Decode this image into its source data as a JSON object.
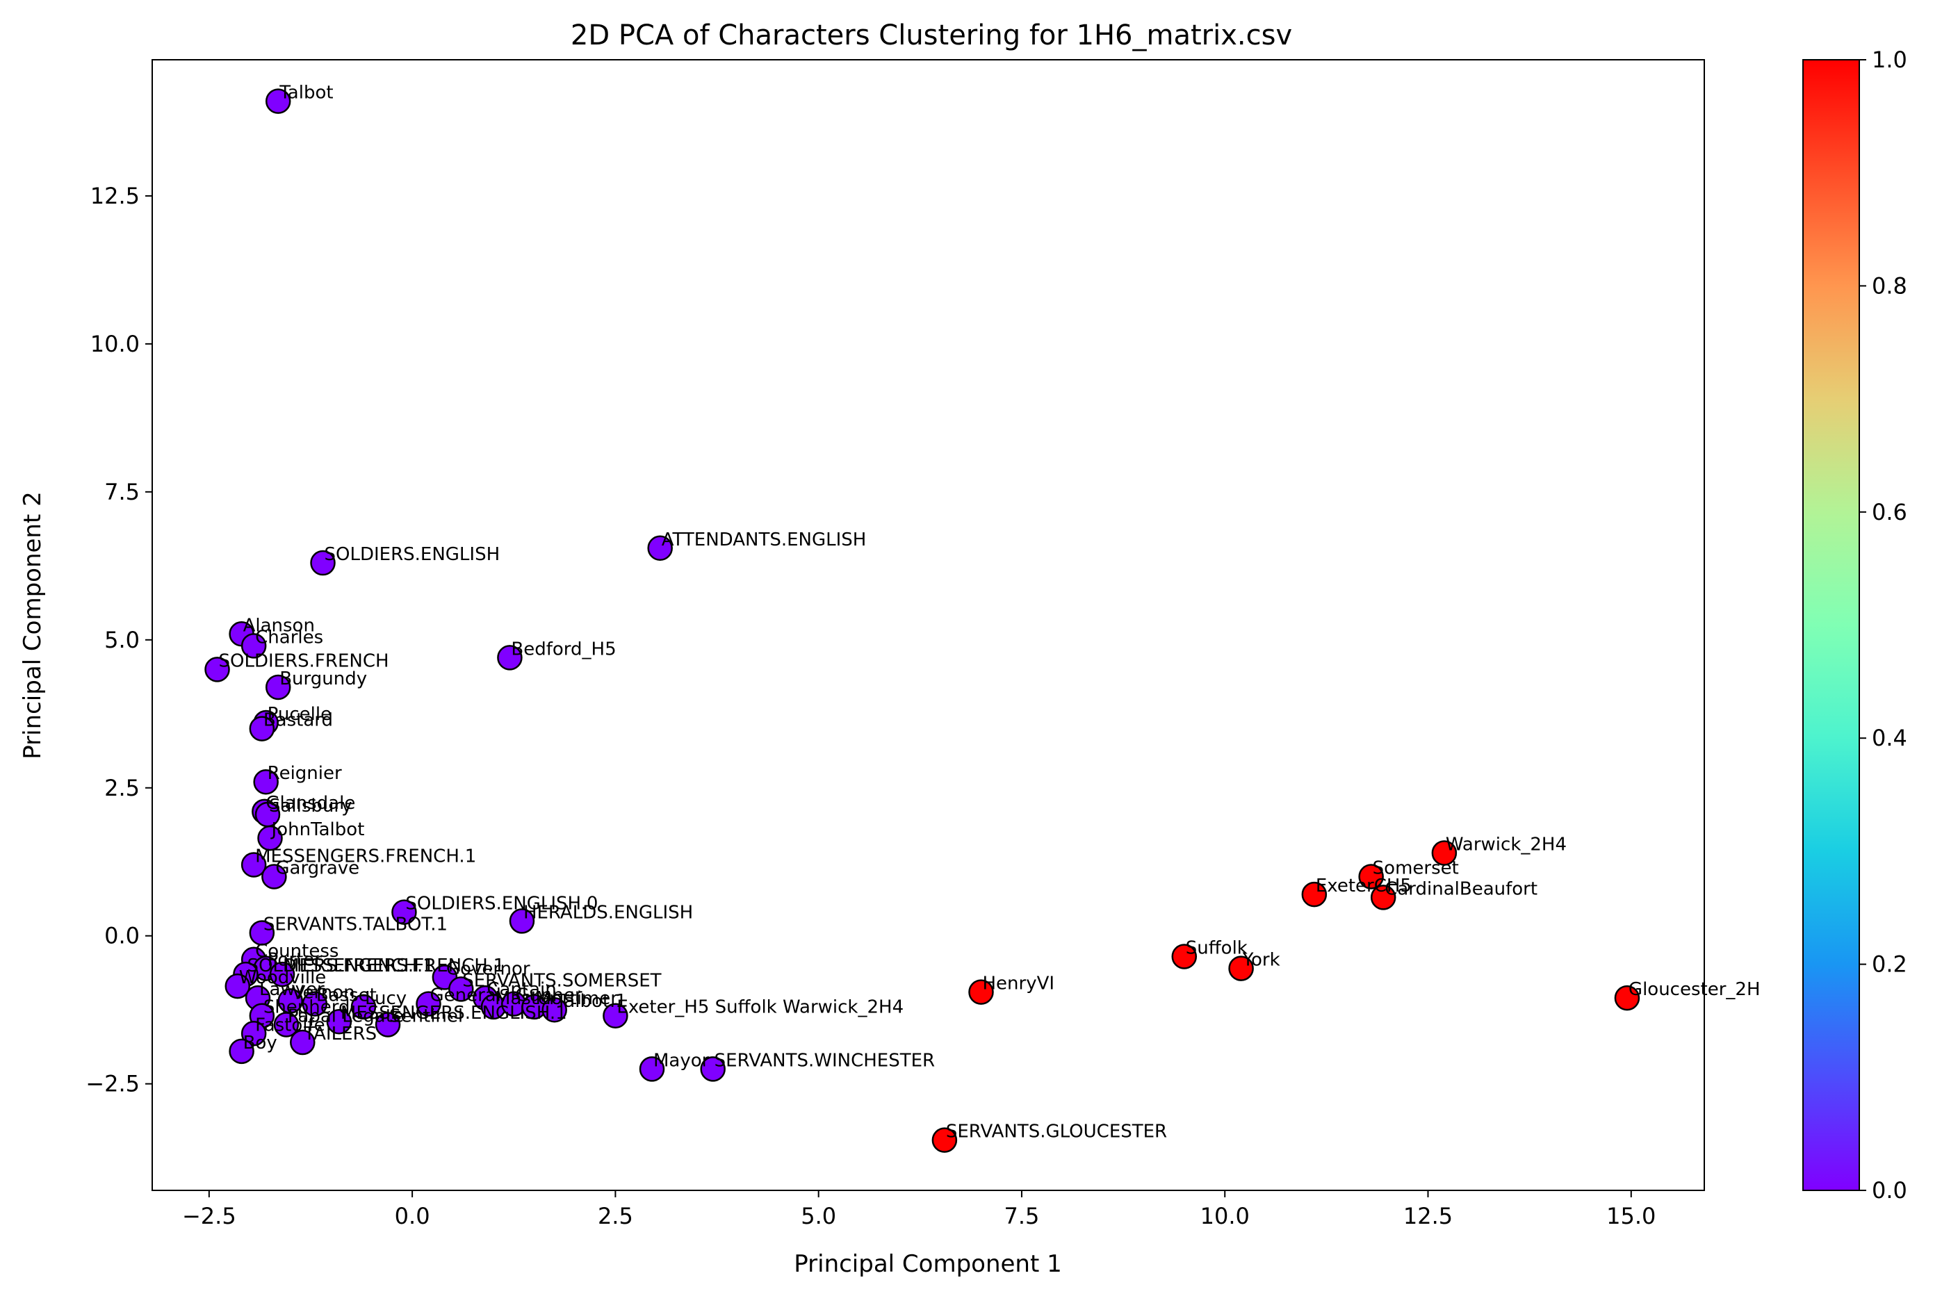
{
  "chart_data": {
    "type": "scatter",
    "title": "2D PCA of Characters Clustering for 1H6_matrix.csv",
    "xlabel": "Principal Component 1",
    "ylabel": "Principal Component 2",
    "xlim": [
      -3.2,
      15.9
    ],
    "ylim": [
      -4.3,
      14.8
    ],
    "xticks": [
      -2.5,
      0.0,
      2.5,
      5.0,
      7.5,
      10.0,
      12.5,
      15.0
    ],
    "xtick_labels": [
      "−2.5",
      "0.0",
      "2.5",
      "5.0",
      "7.5",
      "10.0",
      "12.5",
      "15.0"
    ],
    "yticks": [
      -2.5,
      0.0,
      2.5,
      5.0,
      7.5,
      10.0,
      12.5
    ],
    "ytick_labels": [
      "−2.5",
      "0.0",
      "2.5",
      "5.0",
      "7.5",
      "10.0",
      "12.5"
    ],
    "grid": false,
    "colormap": "rainbow",
    "colorbar": {
      "range": [
        0.0,
        1.0
      ],
      "ticks": [
        0.0,
        0.2,
        0.4,
        0.6,
        0.8,
        1.0
      ],
      "tick_labels": [
        "0.0",
        "0.2",
        "0.4",
        "0.6",
        "0.8",
        "1.0"
      ]
    },
    "cluster_colors": {
      "0": "#8000ff",
      "1": "#ff0000"
    },
    "points": [
      {
        "label": "Talbot",
        "x": -1.65,
        "y": 14.1,
        "c": 0
      },
      {
        "label": "SOLDIERS.ENGLISH",
        "x": -1.1,
        "y": 6.3,
        "c": 0
      },
      {
        "label": "ATTENDANTS.ENGLISH",
        "x": 3.05,
        "y": 6.55,
        "c": 0
      },
      {
        "label": "Alanson",
        "x": -2.1,
        "y": 5.1,
        "c": 0
      },
      {
        "label": "Charles",
        "x": -1.95,
        "y": 4.9,
        "c": 0
      },
      {
        "label": "SOLDIERS.FRENCH",
        "x": -2.4,
        "y": 4.5,
        "c": 0
      },
      {
        "label": "Bedford_H5",
        "x": 1.2,
        "y": 4.7,
        "c": 0
      },
      {
        "label": "Burgundy",
        "x": -1.65,
        "y": 4.2,
        "c": 0
      },
      {
        "label": "Pucelle",
        "x": -1.8,
        "y": 3.6,
        "c": 0
      },
      {
        "label": "Bastard",
        "x": -1.85,
        "y": 3.5,
        "c": 0
      },
      {
        "label": "Reignier",
        "x": -1.8,
        "y": 2.6,
        "c": 0
      },
      {
        "label": "Glansdale",
        "x": -1.82,
        "y": 2.1,
        "c": 0
      },
      {
        "label": "Salisbury",
        "x": -1.78,
        "y": 2.05,
        "c": 0
      },
      {
        "label": "JohnTalbot",
        "x": -1.75,
        "y": 1.65,
        "c": 0
      },
      {
        "label": "MESSENGERS.FRENCH.1",
        "x": -1.95,
        "y": 1.2,
        "c": 0
      },
      {
        "label": "Gargrave",
        "x": -1.7,
        "y": 1.0,
        "c": 0
      },
      {
        "label": "SOLDIERS.ENGLISH.0",
        "x": -0.1,
        "y": 0.4,
        "c": 0
      },
      {
        "label": "HERALDS.ENGLISH",
        "x": 1.35,
        "y": 0.25,
        "c": 0
      },
      {
        "label": "SERVANTS.TALBOT.1",
        "x": -1.85,
        "y": 0.05,
        "c": 0
      },
      {
        "label": "Countess",
        "x": -1.95,
        "y": -0.4,
        "c": 0
      },
      {
        "label": "Porter",
        "x": -1.8,
        "y": -0.55,
        "c": 0
      },
      {
        "label": "MESSENGERS.FRENCH.1",
        "x": -1.6,
        "y": -0.65,
        "c": 0
      },
      {
        "label": "Governor",
        "x": 0.4,
        "y": -0.7,
        "c": 0
      },
      {
        "label": "SERVANTS.SOMERSET",
        "x": 0.6,
        "y": -0.9,
        "c": 0
      },
      {
        "label": "SOLDIERS.FRENCH.1",
        "x": -2.05,
        "y": -0.65,
        "c": 0
      },
      {
        "label": "Woodville",
        "x": -2.15,
        "y": -0.85,
        "c": 0
      },
      {
        "label": "Captain",
        "x": 0.9,
        "y": -1.05,
        "c": 0
      },
      {
        "label": "Lawyer",
        "x": -1.9,
        "y": -1.05,
        "c": 0
      },
      {
        "label": "Vernon",
        "x": -1.5,
        "y": -1.1,
        "c": 0
      },
      {
        "label": "Basset",
        "x": -1.2,
        "y": -1.15,
        "c": 0
      },
      {
        "label": "Lucy",
        "x": -0.6,
        "y": -1.2,
        "c": 0
      },
      {
        "label": "General",
        "x": 0.2,
        "y": -1.15,
        "c": 0
      },
      {
        "label": "Master",
        "x": 1.0,
        "y": -1.2,
        "c": 0
      },
      {
        "label": "Gunner",
        "x": 1.25,
        "y": -1.15,
        "c": 0
      },
      {
        "label": "Mortimer",
        "x": 1.5,
        "y": -1.2,
        "c": 0
      },
      {
        "label": "Talbot.1",
        "x": 1.75,
        "y": -1.25,
        "c": 0
      },
      {
        "label": "Exeter_H5 Suffolk Warwick_2H4",
        "x": 2.5,
        "y": -1.35,
        "c": 0
      },
      {
        "label": "Shepherd",
        "x": -1.85,
        "y": -1.35,
        "c": 0
      },
      {
        "label": "MESSENGERS.ENGLISH.1",
        "x": -0.9,
        "y": -1.45,
        "c": 0
      },
      {
        "label": "Papal Legate",
        "x": -1.55,
        "y": -1.5,
        "c": 0
      },
      {
        "label": "Sentinel",
        "x": -0.3,
        "y": -1.5,
        "c": 0
      },
      {
        "label": "Fastolfe",
        "x": -1.95,
        "y": -1.65,
        "c": 0
      },
      {
        "label": "TAILERS",
        "x": -1.35,
        "y": -1.8,
        "c": 0
      },
      {
        "label": "Boy",
        "x": -2.1,
        "y": -1.95,
        "c": 0
      },
      {
        "label": "Mayor",
        "x": 2.95,
        "y": -2.25,
        "c": 0
      },
      {
        "label": "SERVANTS.WINCHESTER",
        "x": 3.7,
        "y": -2.25,
        "c": 0
      },
      {
        "label": "SERVANTS.GLOUCESTER",
        "x": 6.55,
        "y": -3.45,
        "c": 1
      },
      {
        "label": "HenryVI",
        "x": 7.0,
        "y": -0.95,
        "c": 1
      },
      {
        "label": "Suffolk",
        "x": 9.5,
        "y": -0.35,
        "c": 1
      },
      {
        "label": "York",
        "x": 10.2,
        "y": -0.55,
        "c": 1
      },
      {
        "label": "ExeterCH5",
        "x": 11.1,
        "y": 0.7,
        "c": 1
      },
      {
        "label": "Somerset",
        "x": 11.8,
        "y": 1.0,
        "c": 1
      },
      {
        "label": "CardinalBeaufort",
        "x": 11.95,
        "y": 0.65,
        "c": 1
      },
      {
        "label": "Warwick_2H4",
        "x": 12.7,
        "y": 1.4,
        "c": 1
      },
      {
        "label": "Gloucester_2H",
        "x": 14.95,
        "y": -1.05,
        "c": 1
      }
    ]
  }
}
